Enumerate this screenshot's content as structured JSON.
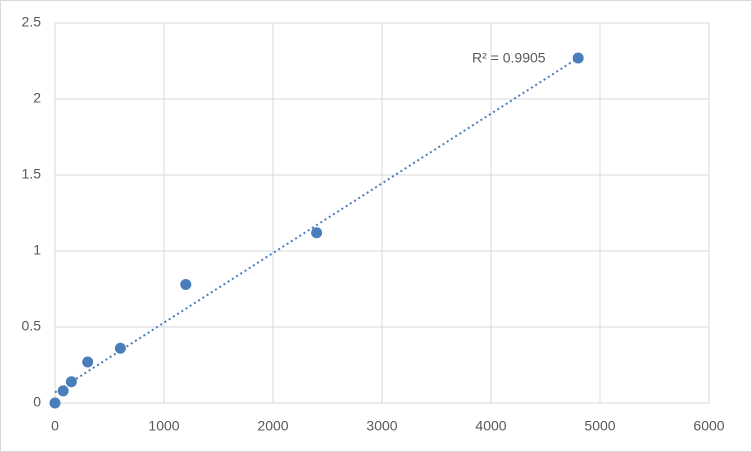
{
  "chart_data": {
    "type": "scatter",
    "series": [
      {
        "color": "#4a7ebb",
        "x": [
          0,
          75,
          150,
          300,
          600,
          1200,
          2400,
          4800
        ],
        "values": [
          0,
          0.08,
          0.14,
          0.27,
          0.36,
          0.78,
          1.12,
          2.27
        ]
      }
    ],
    "trendline": {
      "x": [
        0,
        4800
      ],
      "values": [
        0.07,
        2.27
      ],
      "color": "#4a7ebb"
    },
    "annotation": "R² = 0.9905",
    "xlim": [
      0,
      6000
    ],
    "xticks": [
      0,
      1000,
      2000,
      3000,
      4000,
      5000,
      6000
    ],
    "ylim": [
      0,
      2.5
    ],
    "yticks": [
      0,
      0.5,
      1,
      1.5,
      2,
      2.5
    ],
    "grid": true
  }
}
